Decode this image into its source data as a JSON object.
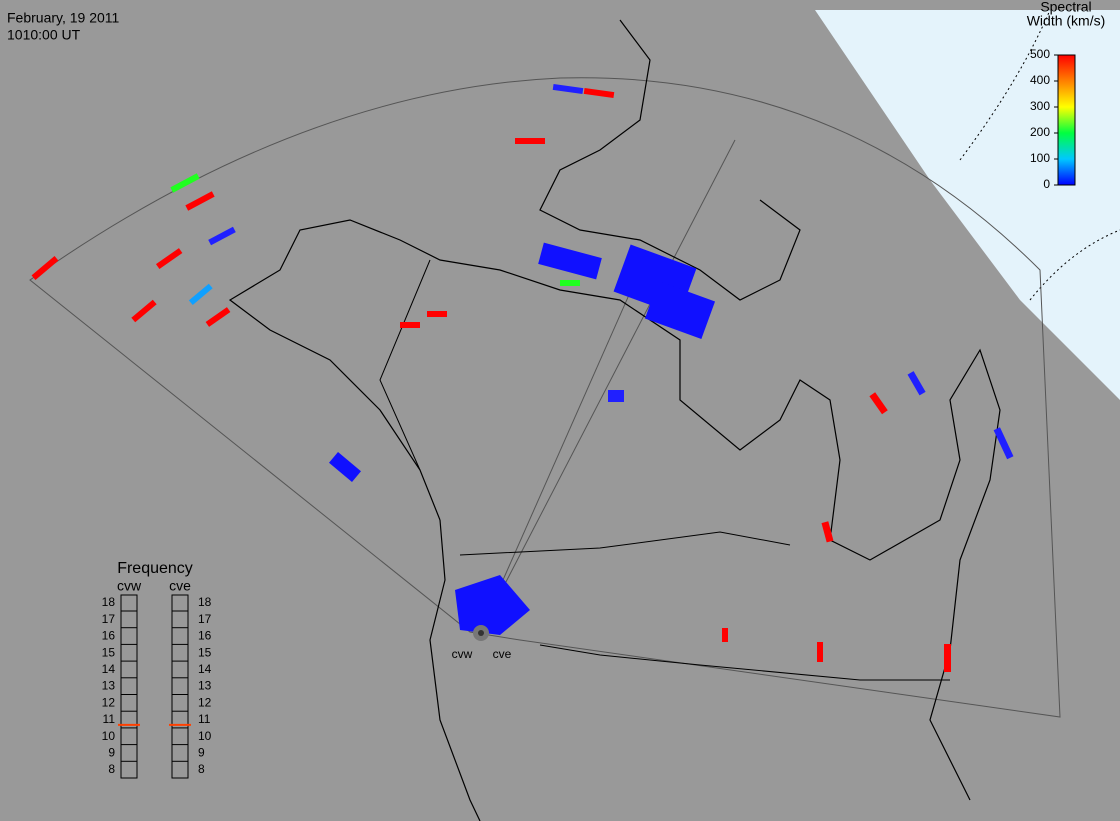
{
  "header": {
    "date": "February, 19 2011",
    "time": "1010:00 UT"
  },
  "color_scale": {
    "title_lines": [
      "Spectral",
      "Width (km/s)"
    ],
    "lim": [
      0,
      500
    ],
    "ticks": [
      0,
      100,
      200,
      300,
      400,
      500
    ]
  },
  "frequency": {
    "title": "Frequency",
    "lim": [
      8,
      18
    ],
    "ticks": [
      8,
      9,
      10,
      11,
      12,
      13,
      14,
      15,
      16,
      17,
      18
    ],
    "radars": [
      {
        "name": "cvw",
        "value": 10.7
      },
      {
        "name": "cve",
        "value": 10.7
      }
    ]
  },
  "map": {
    "radar_labels": [
      "cvw",
      "cve"
    ]
  }
}
